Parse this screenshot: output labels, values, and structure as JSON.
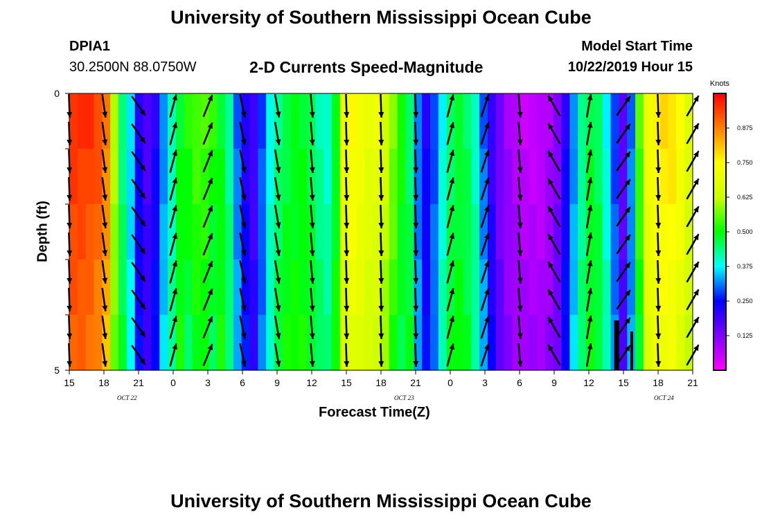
{
  "chart_data": {
    "type": "heatmap",
    "title": "University of Southern Mississippi Ocean Cube",
    "footer": "University of Southern Mississippi Ocean Cube",
    "station": "DPIA1",
    "location": "30.2500N 88.0750W",
    "subtitle": "2-D Currents Speed-Magnitude",
    "model_start_label": "Model Start Time",
    "model_start_value": "10/22/2019 Hour 15",
    "xlabel": "Forecast Time(Z)",
    "ylabel": "Depth (ft)",
    "xlim": [
      0,
      54
    ],
    "ylim": [
      0,
      5
    ],
    "x_unit": "hours after model start",
    "x_tick_labels": [
      "15",
      "18",
      "21",
      "0",
      "3",
      "6",
      "9",
      "12",
      "15",
      "18",
      "21",
      "0",
      "3",
      "6",
      "9",
      "12",
      "15",
      "18",
      "21"
    ],
    "y_tick_labels": [
      "0",
      "5"
    ],
    "date_labels": [
      {
        "hour": 5,
        "label": "OCT 22"
      },
      {
        "hour": 29,
        "label": "OCT 23"
      },
      {
        "hour": 51.5,
        "label": "OCT 24"
      }
    ],
    "colorbar": {
      "title": "Knots",
      "range": [
        0.0,
        1.0
      ],
      "ticks": [
        "0.875",
        "0.750",
        "0.625",
        "0.500",
        "0.375",
        "0.250",
        "0.125"
      ],
      "tick_values": [
        0.875,
        0.75,
        0.625,
        0.5,
        0.375,
        0.25,
        0.125
      ],
      "colors": [
        "#ff00ff",
        "#8000ff",
        "#0000ff",
        "#00ffff",
        "#00ff00",
        "#ccff00",
        "#ffff00",
        "#ff8000",
        "#ff0000"
      ]
    },
    "depth_layers": 5,
    "speed_by_hour": [
      0.96,
      0.96,
      0.95,
      0.93,
      0.88,
      0.62,
      0.44,
      0.35,
      0.22,
      0.17,
      0.22,
      0.32,
      0.4,
      0.48,
      0.52,
      0.55,
      0.55,
      0.52,
      0.48,
      0.42,
      0.3,
      0.22,
      0.18,
      0.28,
      0.38,
      0.44,
      0.47,
      0.48,
      0.48,
      0.46,
      0.42,
      0.4,
      0.48,
      0.7,
      0.75,
      0.73,
      0.7,
      0.7,
      0.65,
      0.58,
      0.52,
      0.45,
      0.3,
      0.22,
      0.28,
      0.38,
      0.45,
      0.47,
      0.45,
      0.4,
      0.3,
      0.2,
      0.13,
      0.09,
      0.07,
      0.06,
      0.06,
      0.06,
      0.08,
      0.12,
      0.22,
      0.32,
      0.42,
      0.47,
      0.45,
      0.38,
      0.28,
      0.15,
      0.3,
      0.55,
      0.72,
      0.76,
      0.78,
      0.78,
      0.74,
      0.68
    ],
    "arrow_columns": [
      {
        "hour": 0,
        "angle": 178
      },
      {
        "hour": 3,
        "angle": 172
      },
      {
        "hour": 6,
        "angle": 145
      },
      {
        "hour": 9,
        "angle": 15
      },
      {
        "hour": 12,
        "angle": 22
      },
      {
        "hour": 15,
        "angle": 168
      },
      {
        "hour": 18,
        "angle": 170
      },
      {
        "hour": 21,
        "angle": 175
      },
      {
        "hour": 24,
        "angle": 178
      },
      {
        "hour": 27,
        "angle": 178
      },
      {
        "hour": 30,
        "angle": 178
      },
      {
        "hour": 33,
        "angle": 15
      },
      {
        "hour": 36,
        "angle": 18
      },
      {
        "hour": 39,
        "angle": 175
      },
      {
        "hour": 42,
        "angle": 330
      },
      {
        "hour": 45,
        "angle": 10
      },
      {
        "hour": 48,
        "angle": 35
      },
      {
        "hour": 51,
        "angle": 178
      },
      {
        "hour": 54,
        "angle": 30
      }
    ],
    "arrow_rows": [
      0,
      0.5,
      1,
      1.5,
      2,
      2.5,
      3,
      3.5,
      4,
      4.5
    ]
  }
}
